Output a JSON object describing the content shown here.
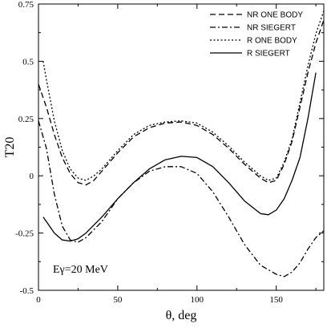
{
  "chart_data": {
    "type": "line",
    "xlabel": "θ, deg",
    "ylabel": "T20",
    "xlim": [
      0,
      180
    ],
    "ylim": [
      -0.5,
      0.75
    ],
    "xticks": [
      0,
      50,
      100,
      150
    ],
    "yticks": [
      -0.5,
      -0.25,
      0,
      0.25,
      0.5,
      0.75
    ],
    "xtick_labels": [
      "0",
      "50",
      "100",
      "150"
    ],
    "ytick_labels": [
      "-0.5",
      "-0.25",
      "0",
      "0.25",
      "0.5",
      "0.75"
    ],
    "grid": false,
    "legend_position": "top-right",
    "annotation": "Eγ=20 MeV",
    "series": [
      {
        "name": "NR ONE BODY",
        "dash": "dashed",
        "x": [
          0,
          5,
          10,
          15,
          20,
          25,
          30,
          35,
          40,
          50,
          60,
          70,
          80,
          90,
          100,
          110,
          120,
          130,
          140,
          145,
          150,
          155,
          160,
          165,
          170,
          175,
          180
        ],
        "y": [
          0.4,
          0.3,
          0.18,
          0.08,
          0.01,
          -0.03,
          -0.04,
          -0.02,
          0.02,
          0.1,
          0.17,
          0.21,
          0.23,
          0.235,
          0.22,
          0.18,
          0.12,
          0.05,
          -0.01,
          -0.03,
          -0.02,
          0.05,
          0.15,
          0.3,
          0.45,
          0.58,
          0.68
        ]
      },
      {
        "name": "NR SIEGERT",
        "dash": "dash-dot",
        "x": [
          0,
          5,
          10,
          15,
          20,
          25,
          30,
          40,
          50,
          60,
          70,
          80,
          90,
          100,
          110,
          120,
          130,
          140,
          150,
          155,
          160,
          165,
          170,
          175,
          180
        ],
        "y": [
          0.24,
          0.12,
          -0.08,
          -0.22,
          -0.28,
          -0.29,
          -0.27,
          -0.2,
          -0.1,
          -0.03,
          0.02,
          0.04,
          0.04,
          0.01,
          -0.07,
          -0.18,
          -0.3,
          -0.39,
          -0.43,
          -0.44,
          -0.42,
          -0.38,
          -0.32,
          -0.27,
          -0.24
        ]
      },
      {
        "name": "R ONE BODY",
        "dash": "dotted",
        "x": [
          3,
          5,
          10,
          15,
          20,
          25,
          30,
          35,
          40,
          50,
          60,
          70,
          80,
          90,
          100,
          110,
          120,
          130,
          140,
          145,
          150,
          155,
          160,
          165,
          170,
          175,
          180
        ],
        "y": [
          0.5,
          0.42,
          0.24,
          0.11,
          0.03,
          -0.01,
          -0.02,
          0.0,
          0.03,
          0.11,
          0.18,
          0.22,
          0.235,
          0.24,
          0.23,
          0.19,
          0.13,
          0.06,
          0.0,
          -0.02,
          -0.01,
          0.06,
          0.16,
          0.32,
          0.48,
          0.62,
          0.72
        ]
      },
      {
        "name": "R SIEGERT",
        "dash": "solid",
        "x": [
          3,
          5,
          10,
          15,
          20,
          25,
          30,
          40,
          50,
          60,
          70,
          80,
          90,
          100,
          110,
          120,
          130,
          140,
          145,
          150,
          155,
          160,
          165,
          170,
          175
        ],
        "y": [
          -0.18,
          -0.2,
          -0.25,
          -0.28,
          -0.285,
          -0.275,
          -0.25,
          -0.18,
          -0.1,
          -0.03,
          0.03,
          0.07,
          0.085,
          0.08,
          0.04,
          -0.03,
          -0.11,
          -0.165,
          -0.17,
          -0.15,
          -0.1,
          -0.02,
          0.08,
          0.25,
          0.45
        ]
      }
    ]
  }
}
